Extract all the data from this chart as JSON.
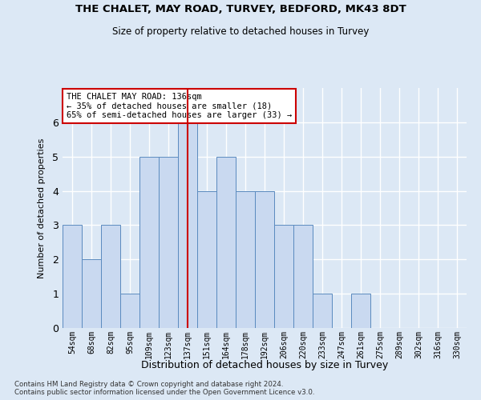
{
  "title": "THE CHALET, MAY ROAD, TURVEY, BEDFORD, MK43 8DT",
  "subtitle": "Size of property relative to detached houses in Turvey",
  "xlabel": "Distribution of detached houses by size in Turvey",
  "ylabel": "Number of detached properties",
  "bar_labels": [
    "54sqm",
    "68sqm",
    "82sqm",
    "95sqm",
    "109sqm",
    "123sqm",
    "137sqm",
    "151sqm",
    "164sqm",
    "178sqm",
    "192sqm",
    "206sqm",
    "220sqm",
    "233sqm",
    "247sqm",
    "261sqm",
    "275sqm",
    "289sqm",
    "302sqm",
    "316sqm",
    "330sqm"
  ],
  "bar_values": [
    3,
    2,
    3,
    1,
    5,
    5,
    6,
    4,
    5,
    4,
    4,
    3,
    3,
    1,
    0,
    1,
    0,
    0,
    0,
    0,
    0
  ],
  "bar_color": "#c9d9f0",
  "bar_edgecolor": "#5a8abf",
  "vline_index": 6,
  "vline_color": "#cc0000",
  "annotation_text": "THE CHALET MAY ROAD: 136sqm\n← 35% of detached houses are smaller (18)\n65% of semi-detached houses are larger (33) →",
  "annotation_box_color": "#ffffff",
  "annotation_box_edgecolor": "#cc0000",
  "ylim": [
    0,
    7
  ],
  "yticks": [
    0,
    1,
    2,
    3,
    4,
    5,
    6,
    7
  ],
  "background_color": "#dce8f5",
  "grid_color": "#ffffff",
  "footer": "Contains HM Land Registry data © Crown copyright and database right 2024.\nContains public sector information licensed under the Open Government Licence v3.0."
}
